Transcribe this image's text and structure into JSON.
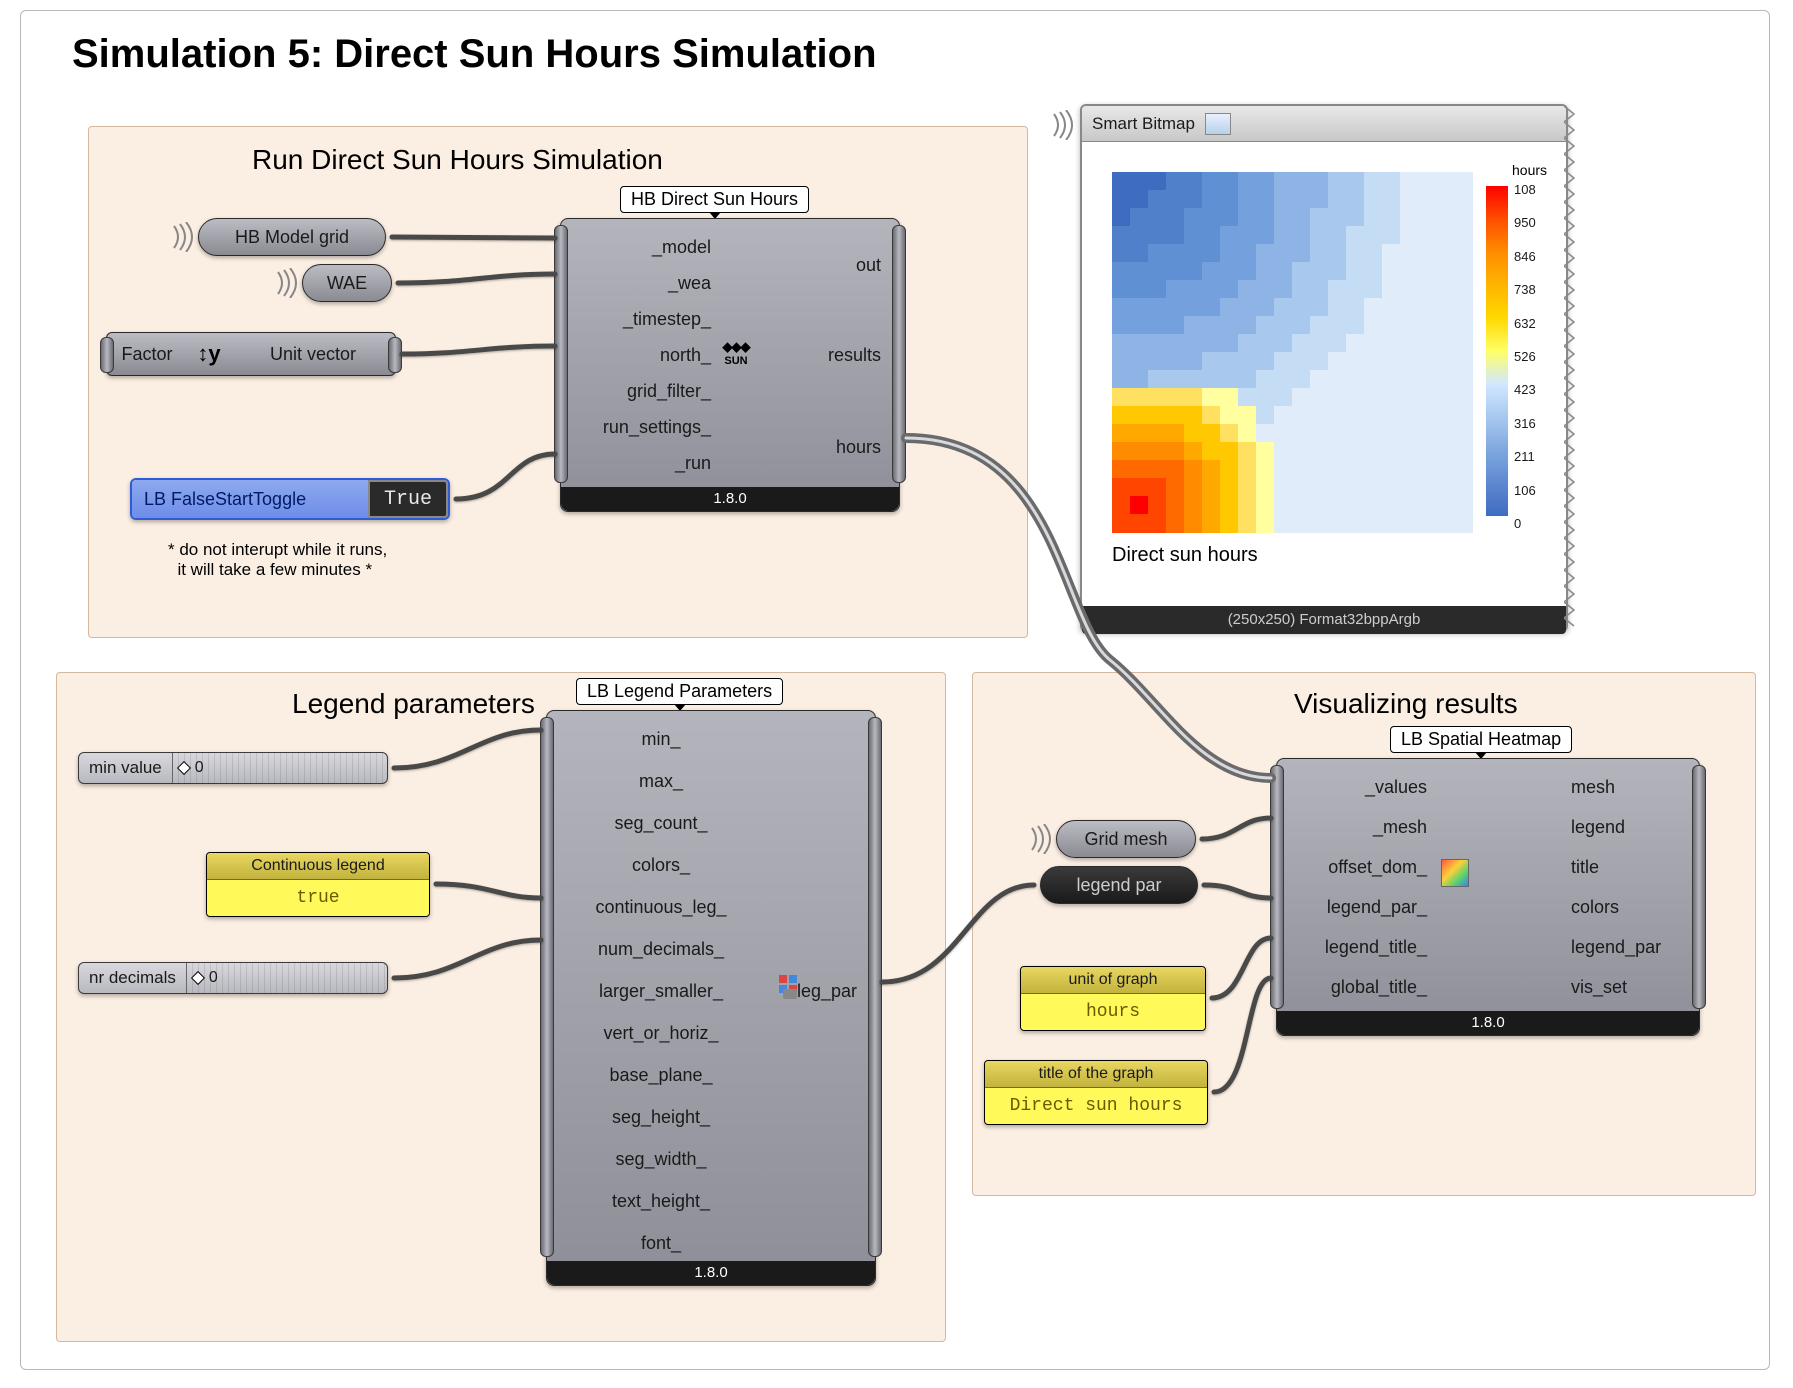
{
  "title": "Simulation 5: Direct Sun Hours Simulation",
  "groups": {
    "run": {
      "title": "Run Direct Sun Hours Simulation"
    },
    "legend": {
      "title": "Legend parameters"
    },
    "viz": {
      "title": "Visualizing results"
    }
  },
  "components": {
    "hb_direct_sun": {
      "label": "HB Direct Sun Hours",
      "version": "1.8.0",
      "inputs": [
        "_model",
        "_wea",
        "_timestep_",
        "north_",
        "grid_filter_",
        "run_settings_",
        "_run"
      ],
      "outputs": [
        "out",
        "results",
        "hours"
      ],
      "icon_text": "SUN"
    },
    "lb_legend": {
      "label": "LB Legend Parameters",
      "version": "1.8.0",
      "inputs": [
        "min_",
        "max_",
        "seg_count_",
        "colors_",
        "continuous_leg_",
        "num_decimals_",
        "larger_smaller_",
        "vert_or_horiz_",
        "base_plane_",
        "seg_height_",
        "seg_width_",
        "text_height_",
        "font_"
      ],
      "outputs": [
        "leg_par"
      ]
    },
    "lb_heatmap": {
      "label": "LB Spatial Heatmap",
      "version": "1.8.0",
      "inputs": [
        "_values",
        "_mesh",
        "offset_dom_",
        "legend_par_",
        "legend_title_",
        "global_title_"
      ],
      "outputs": [
        "mesh",
        "legend",
        "title",
        "colors",
        "legend_par",
        "vis_set"
      ]
    }
  },
  "params": {
    "hb_model_grid": "HB Model grid",
    "wae": "WAE",
    "factor": "Factor",
    "unit_vector": "Unit vector",
    "grid_mesh": "Grid mesh",
    "legend_par": "legend par"
  },
  "toggle": {
    "label": "LB FalseStartToggle",
    "value": "True"
  },
  "sliders": {
    "min_value": {
      "label": "min value",
      "value": "0"
    },
    "nr_decimals": {
      "label": "nr decimals",
      "value": "0"
    }
  },
  "panels": {
    "cont_legend": {
      "title": "Continuous legend",
      "value": "true"
    },
    "unit": {
      "title": "unit of graph",
      "value": "hours"
    },
    "gtitle": {
      "title": "title of the graph",
      "value": "Direct sun hours"
    }
  },
  "notes": {
    "interrupt": "* do not interupt while it runs,\n  it will take a few minutes *"
  },
  "bitmap": {
    "title": "Smart Bitmap",
    "footer": "(250x250) Format32bppArgb",
    "caption": "Direct sun hours",
    "legend_title": "hours",
    "legend_ticks": [
      "108",
      "950",
      "846",
      "738",
      "632",
      "526",
      "423",
      "316",
      "211",
      "106",
      "0"
    ],
    "legend_colors": [
      "#ff0000",
      "#ff4d00",
      "#ff8c00",
      "#ffb400",
      "#ffd800",
      "#ffff66",
      "#d0e8ff",
      "#a8c8f0",
      "#7fa8e0",
      "#5e88d0",
      "#3e6cc0"
    ],
    "heatmap": {
      "rows": 20,
      "cols": 20,
      "bg_base": "#5e88d0",
      "gradient_colors": [
        "#3e6cc0",
        "#5080ca",
        "#6090d4",
        "#74a0de",
        "#8eb4e6",
        "#a8c8ee",
        "#c4dcf4",
        "#e0ecfa"
      ],
      "hot_colors": [
        "#ff0000",
        "#ff4500",
        "#ff6a00",
        "#ff8c00",
        "#ffa800",
        "#ffc800",
        "#ffe060",
        "#ffffa0"
      ]
    }
  },
  "colors": {
    "group_bg": "#fbeee2",
    "group_border": "#d4b9a0",
    "comp_top": "#b4b4bc",
    "comp_bot": "#8e8e98",
    "wire": "#4a4a4a",
    "wire_double": "#6a6a6a",
    "panel_header": "#e8d760",
    "panel_body": "#fff95a",
    "toggle_bg": "#8ea9f0"
  }
}
